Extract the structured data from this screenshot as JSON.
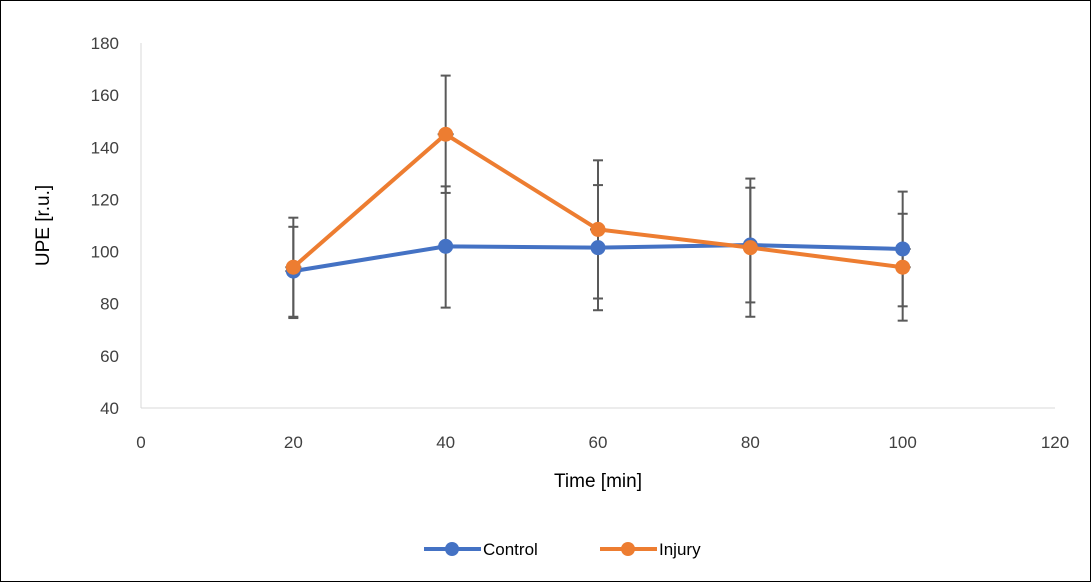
{
  "chart_data": {
    "type": "line",
    "title": "",
    "xlabel": "Time [min]",
    "ylabel": "UPE [r.u.]",
    "xlim": [
      0,
      120
    ],
    "ylim": [
      40,
      180
    ],
    "x_ticks": [
      0,
      20,
      40,
      60,
      80,
      100,
      120
    ],
    "y_ticks": [
      40,
      60,
      80,
      100,
      120,
      140,
      160,
      180
    ],
    "grid": false,
    "legend_position": "bottom",
    "x": [
      20,
      40,
      60,
      80,
      100
    ],
    "series": [
      {
        "name": "Control",
        "color": "#4472C4",
        "values": [
          92.5,
          102,
          101.5,
          102.5,
          101
        ],
        "error_low": [
          75,
          78.5,
          82,
          80.5,
          79
        ],
        "error_high": [
          109.5,
          125,
          125.5,
          124.5,
          114.5
        ]
      },
      {
        "name": "Injury",
        "color": "#ED7D31",
        "values": [
          94,
          145,
          108.5,
          101.5,
          94
        ],
        "error_low": [
          74.5,
          122.5,
          77.5,
          75,
          73.5
        ],
        "error_high": [
          113,
          167.5,
          135,
          128,
          123
        ]
      }
    ]
  }
}
